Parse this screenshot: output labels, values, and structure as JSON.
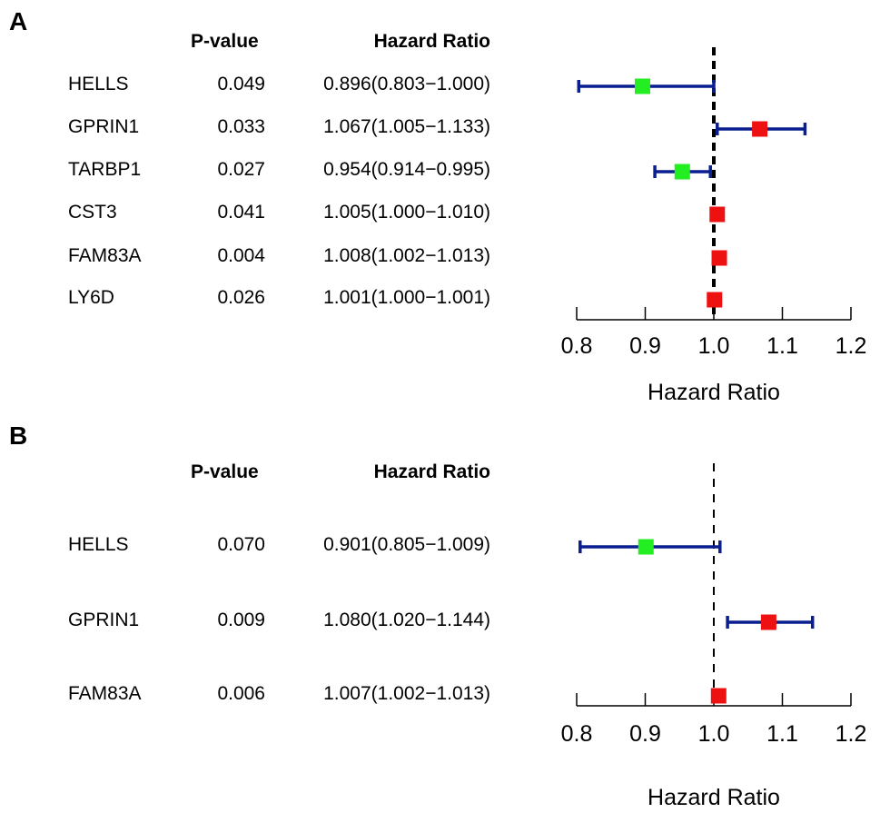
{
  "chart_data": [
    {
      "type": "forest",
      "panel_label": "A",
      "columns": {
        "pvalue_header": "P-value",
        "hr_header": "Hazard Ratio"
      },
      "rows": [
        {
          "gene": "HELLS",
          "pvalue": "0.049",
          "hr_text": "0.896(0.803−1.000)",
          "hr": 0.896,
          "lower": 0.803,
          "upper": 1.0,
          "color": "#22ee22"
        },
        {
          "gene": "GPRIN1",
          "pvalue": "0.033",
          "hr_text": "1.067(1.005−1.133)",
          "hr": 1.067,
          "lower": 1.005,
          "upper": 1.133,
          "color": "#ee1111"
        },
        {
          "gene": "TARBP1",
          "pvalue": "0.027",
          "hr_text": "0.954(0.914−0.995)",
          "hr": 0.954,
          "lower": 0.914,
          "upper": 0.995,
          "color": "#22ee22"
        },
        {
          "gene": "CST3",
          "pvalue": "0.041",
          "hr_text": "1.005(1.000−1.010)",
          "hr": 1.005,
          "lower": 1.0,
          "upper": 1.01,
          "color": "#ee1111"
        },
        {
          "gene": "FAM83A",
          "pvalue": "0.004",
          "hr_text": "1.008(1.002−1.013)",
          "hr": 1.008,
          "lower": 1.002,
          "upper": 1.013,
          "color": "#ee1111"
        },
        {
          "gene": "LY6D",
          "pvalue": "0.026",
          "hr_text": "1.001(1.000−1.001)",
          "hr": 1.001,
          "lower": 1.0,
          "upper": 1.001,
          "color": "#ee1111"
        }
      ],
      "xlim": [
        0.8,
        1.2
      ],
      "ticks": [
        "0.8",
        "0.9",
        "1.0",
        "1.1",
        "1.2"
      ],
      "reference_line": 1.0,
      "xlabel": "Hazard Ratio",
      "ci_color": "#0a1f8f"
    },
    {
      "type": "forest",
      "panel_label": "B",
      "columns": {
        "pvalue_header": "P-value",
        "hr_header": "Hazard Ratio"
      },
      "rows": [
        {
          "gene": "HELLS",
          "pvalue": "0.070",
          "hr_text": "0.901(0.805−1.009)",
          "hr": 0.901,
          "lower": 0.805,
          "upper": 1.009,
          "color": "#22ee22"
        },
        {
          "gene": "GPRIN1",
          "pvalue": "0.009",
          "hr_text": "1.080(1.020−1.144)",
          "hr": 1.08,
          "lower": 1.02,
          "upper": 1.144,
          "color": "#ee1111"
        },
        {
          "gene": "FAM83A",
          "pvalue": "0.006",
          "hr_text": "1.007(1.002−1.013)",
          "hr": 1.007,
          "lower": 1.002,
          "upper": 1.013,
          "color": "#ee1111"
        }
      ],
      "xlim": [
        0.8,
        1.2
      ],
      "ticks": [
        "0.8",
        "0.9",
        "1.0",
        "1.1",
        "1.2"
      ],
      "reference_line": 1.0,
      "xlabel": "Hazard Ratio",
      "ci_color": "#0a1f8f"
    }
  ]
}
